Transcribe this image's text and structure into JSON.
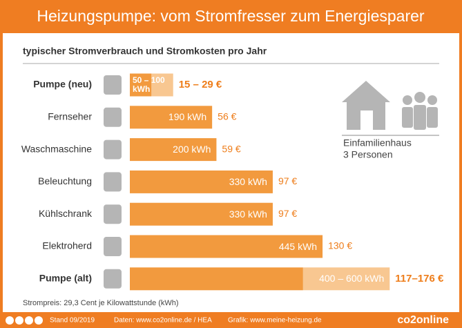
{
  "chart_data": {
    "type": "bar",
    "title": "Heizungspumpe: vom Stromfresser zum Energiesparer",
    "subtitle": "typischer Stromverbrauch und Stromkosten pro Jahr",
    "categories": [
      "Pumpe (neu)",
      "Fernseher",
      "Waschmaschine",
      "Beleuchtung",
      "Kühlschrank",
      "Elektroherd",
      "Pumpe (alt)"
    ],
    "values": [
      50,
      190,
      200,
      330,
      330,
      445,
      400
    ],
    "values_high": [
      100,
      null,
      null,
      null,
      null,
      null,
      600
    ],
    "value_labels": [
      "50 – 100 kWh",
      "190 kWh",
      "200 kWh",
      "330 kWh",
      "330 kWh",
      "445 kWh",
      "400 – 600 kWh"
    ],
    "cost_labels": [
      "15 – 29 €",
      "56 €",
      "59 €",
      "97 €",
      "97 €",
      "130 €",
      "117–176 €"
    ],
    "color": "#f29a3e",
    "range_color": "#f8c791",
    "xlim": [
      0,
      700
    ],
    "annotation": [
      "Einfamilienhaus",
      "3 Personen"
    ],
    "footnote": "Strompreis: 29,3 Cent je Kilowattstunde (kWh)",
    "footer": [
      "Stand 09/2019",
      "Daten: www.co2online.de / HEA",
      "Grafik: www.meine-heizung.de"
    ],
    "logo": "co2online"
  }
}
